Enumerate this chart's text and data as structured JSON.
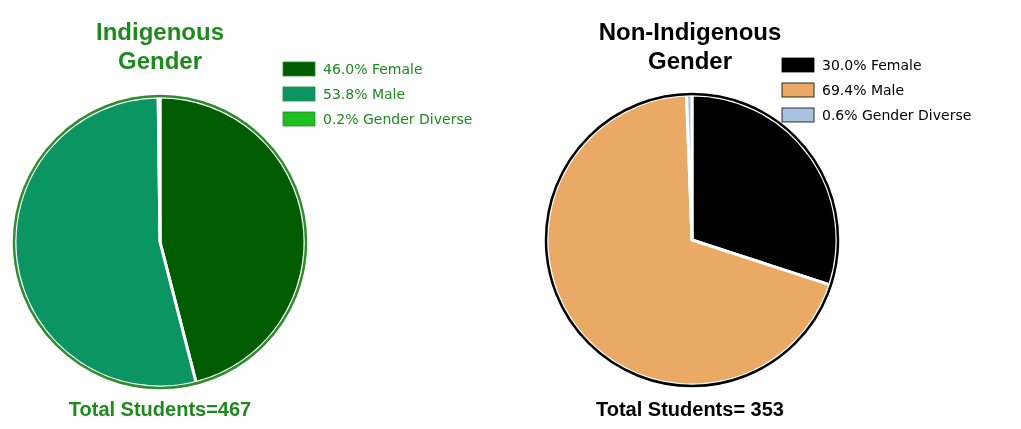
{
  "chart_data": [
    {
      "type": "pie",
      "title": "Indigenous Gender",
      "categories": [
        "46.0% Female",
        "53.8% Male",
        "0.2% Gender Diverse"
      ],
      "values": [
        46.0,
        53.8,
        0.2
      ],
      "colors": [
        "#005c00",
        "#0a9563",
        "#1fbf1f"
      ],
      "legend": "top right",
      "annotations": [
        "Total Students=467"
      ]
    },
    {
      "type": "pie",
      "title": "Non-Indigenous Gender",
      "categories": [
        "30.0% Female",
        "69.4% Male",
        "0.6% Gender Diverse"
      ],
      "values": [
        30.0,
        69.4,
        0.6
      ],
      "colors": [
        "#000000",
        "#eaaa66",
        "#a8c3e0"
      ],
      "legend": "top right",
      "annotations": [
        "Total Students= 353"
      ]
    }
  ]
}
